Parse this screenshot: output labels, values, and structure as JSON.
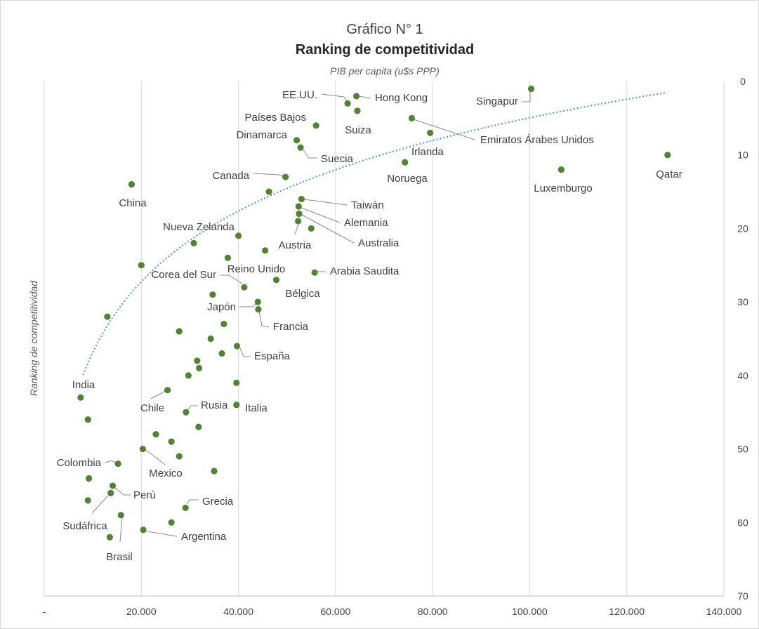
{
  "chart_data": {
    "type": "scatter",
    "title": "Gráfico N° 1",
    "subtitle": "Ranking de competitividad",
    "xlabel": "PIB per capita (u$s PPP)",
    "ylabel": "Ranking de competitividad",
    "xlim": [
      0,
      140000
    ],
    "ylim": [
      0,
      70
    ],
    "y_reversed": true,
    "x_ticks": [
      {
        "value": 0,
        "label": "-"
      },
      {
        "value": 20000,
        "label": "20.000"
      },
      {
        "value": 40000,
        "label": "40.000"
      },
      {
        "value": 60000,
        "label": "60.000"
      },
      {
        "value": 80000,
        "label": "80.000"
      },
      {
        "value": 100000,
        "label": "100.000"
      },
      {
        "value": 120000,
        "label": "120.000"
      },
      {
        "value": 140000,
        "label": "140.000"
      }
    ],
    "y_ticks": [
      {
        "value": 0,
        "label": "0"
      },
      {
        "value": 10,
        "label": "10"
      },
      {
        "value": 20,
        "label": "20"
      },
      {
        "value": 30,
        "label": "30"
      },
      {
        "value": 40,
        "label": "40"
      },
      {
        "value": 50,
        "label": "50"
      },
      {
        "value": 60,
        "label": "60"
      },
      {
        "value": 70,
        "label": "70"
      }
    ],
    "grid": "vertical",
    "point_color": "#548235",
    "trendline_color": "#5b9bd5",
    "points": [
      {
        "x": 100300,
        "y": 1
      },
      {
        "x": 64300,
        "y": 2
      },
      {
        "x": 62500,
        "y": 3
      },
      {
        "x": 64500,
        "y": 4
      },
      {
        "x": 75700,
        "y": 5
      },
      {
        "x": 56000,
        "y": 6
      },
      {
        "x": 79500,
        "y": 7
      },
      {
        "x": 52000,
        "y": 8
      },
      {
        "x": 52800,
        "y": 9
      },
      {
        "x": 128400,
        "y": 10
      },
      {
        "x": 74300,
        "y": 11
      },
      {
        "x": 106500,
        "y": 12
      },
      {
        "x": 49700,
        "y": 13
      },
      {
        "x": 18000,
        "y": 14
      },
      {
        "x": 46300,
        "y": 15
      },
      {
        "x": 53000,
        "y": 16
      },
      {
        "x": 52400,
        "y": 17
      },
      {
        "x": 52500,
        "y": 18
      },
      {
        "x": 52300,
        "y": 19
      },
      {
        "x": 55000,
        "y": 20
      },
      {
        "x": 40000,
        "y": 21
      },
      {
        "x": 30800,
        "y": 22
      },
      {
        "x": 45500,
        "y": 23
      },
      {
        "x": 37800,
        "y": 24
      },
      {
        "x": 20000,
        "y": 25
      },
      {
        "x": 55700,
        "y": 26
      },
      {
        "x": 47800,
        "y": 27
      },
      {
        "x": 41200,
        "y": 28
      },
      {
        "x": 34700,
        "y": 29
      },
      {
        "x": 44000,
        "y": 30
      },
      {
        "x": 44100,
        "y": 31
      },
      {
        "x": 13000,
        "y": 32
      },
      {
        "x": 37000,
        "y": 33
      },
      {
        "x": 27800,
        "y": 34
      },
      {
        "x": 34300,
        "y": 35
      },
      {
        "x": 39700,
        "y": 36
      },
      {
        "x": 36600,
        "y": 37
      },
      {
        "x": 31500,
        "y": 38
      },
      {
        "x": 31900,
        "y": 39
      },
      {
        "x": 29700,
        "y": 40
      },
      {
        "x": 39600,
        "y": 41
      },
      {
        "x": 25400,
        "y": 42
      },
      {
        "x": 7500,
        "y": 43
      },
      {
        "x": 39600,
        "y": 44
      },
      {
        "x": 29200,
        "y": 45
      },
      {
        "x": 9000,
        "y": 46
      },
      {
        "x": 31800,
        "y": 47
      },
      {
        "x": 23000,
        "y": 48
      },
      {
        "x": 26200,
        "y": 49
      },
      {
        "x": 20300,
        "y": 50
      },
      {
        "x": 27800,
        "y": 51
      },
      {
        "x": 15200,
        "y": 52
      },
      {
        "x": 35000,
        "y": 53
      },
      {
        "x": 9200,
        "y": 54
      },
      {
        "x": 14100,
        "y": 55
      },
      {
        "x": 13700,
        "y": 56
      },
      {
        "x": 9000,
        "y": 57
      },
      {
        "x": 29100,
        "y": 58
      },
      {
        "x": 15800,
        "y": 59
      },
      {
        "x": 26200,
        "y": 60
      },
      {
        "x": 20400,
        "y": 61
      },
      {
        "x": 13500,
        "y": 62
      }
    ],
    "labels": [
      {
        "text": "Singapur",
        "x": 100300,
        "y": 1
      },
      {
        "text": "Hong Kong",
        "x": 64300,
        "y": 2
      },
      {
        "text": "EE.UU.",
        "x": 62500,
        "y": 3
      },
      {
        "text": "Suiza",
        "x": 64500,
        "y": 4
      },
      {
        "text": "Emiratos Árabes Unidos",
        "x": 75700,
        "y": 5
      },
      {
        "text": "Países Bajos",
        "x": 56000,
        "y": 6
      },
      {
        "text": "Irlanda",
        "x": 79500,
        "y": 7
      },
      {
        "text": "Dinamarca",
        "x": 52000,
        "y": 8
      },
      {
        "text": "Suecia",
        "x": 52800,
        "y": 9
      },
      {
        "text": "Qatar",
        "x": 128400,
        "y": 10
      },
      {
        "text": "Noruega",
        "x": 74300,
        "y": 11
      },
      {
        "text": "Luxemburgo",
        "x": 106500,
        "y": 12
      },
      {
        "text": "Canada",
        "x": 49700,
        "y": 13
      },
      {
        "text": "China",
        "x": 18000,
        "y": 14
      },
      {
        "text": "Taiwán",
        "x": 53000,
        "y": 16
      },
      {
        "text": "Alemania",
        "x": 52400,
        "y": 17
      },
      {
        "text": "Australia",
        "x": 52500,
        "y": 18
      },
      {
        "text": "Austria",
        "x": 52300,
        "y": 19
      },
      {
        "text": "Nueva Zelanda",
        "x": 40000,
        "y": 21
      },
      {
        "text": "Arabia Saudita",
        "x": 55700,
        "y": 26
      },
      {
        "text": "Bélgica",
        "x": 47800,
        "y": 27
      },
      {
        "text": "Reino Unido",
        "x": 41200,
        "y": 28
      },
      {
        "text": "Corea del Sur",
        "x": 41200,
        "y": 28
      },
      {
        "text": "Japón",
        "x": 44000,
        "y": 30
      },
      {
        "text": "Francia",
        "x": 44100,
        "y": 31
      },
      {
        "text": "España",
        "x": 39700,
        "y": 36
      },
      {
        "text": "Chile",
        "x": 25400,
        "y": 42
      },
      {
        "text": "India",
        "x": 7500,
        "y": 43
      },
      {
        "text": "Italia",
        "x": 39600,
        "y": 44
      },
      {
        "text": "Rusia",
        "x": 29200,
        "y": 45
      },
      {
        "text": "Mexico",
        "x": 20300,
        "y": 50
      },
      {
        "text": "Colombia",
        "x": 15200,
        "y": 52
      },
      {
        "text": "Perú",
        "x": 13700,
        "y": 56
      },
      {
        "text": "Grecia",
        "x": 29100,
        "y": 58
      },
      {
        "text": "Sudáfrica",
        "x": 15800,
        "y": 59
      },
      {
        "text": "Argentina",
        "x": 20400,
        "y": 61
      },
      {
        "text": "Brasil",
        "x": 13500,
        "y": 62
      }
    ]
  }
}
